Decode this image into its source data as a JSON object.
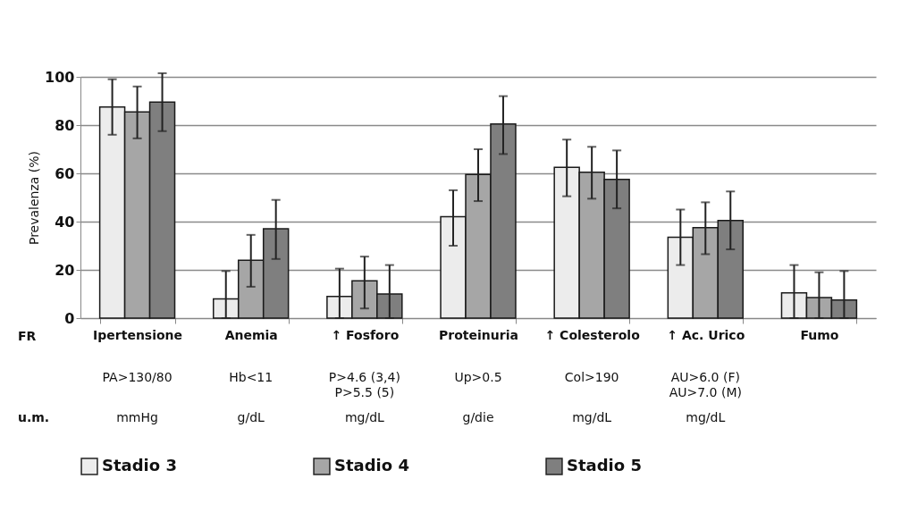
{
  "chart_data": {
    "type": "bar",
    "ylabel": "Prevalenza (%)",
    "categories": [
      "Ipertensione",
      "Anemia",
      "↑ Fosforo",
      "Proteinuria",
      "↑ Colesterolo",
      "↑ Ac. Urico",
      "Fumo"
    ],
    "series": [
      {
        "name": "Stadio 3",
        "color": "#ececec",
        "values": [
          87.5,
          8,
          9,
          42,
          62.5,
          33.5,
          10.5
        ],
        "errors": [
          [
            76,
            99
          ],
          [
            0,
            19.5
          ],
          [
            0,
            20.5
          ],
          [
            30,
            53
          ],
          [
            50.5,
            74
          ],
          [
            22,
            45
          ],
          [
            0,
            22
          ]
        ]
      },
      {
        "name": "Stadio 4",
        "color": "#a6a6a6",
        "values": [
          85.5,
          24,
          15.5,
          59.5,
          60.5,
          37.5,
          8.5
        ],
        "errors": [
          [
            74.5,
            96
          ],
          [
            13,
            34.5
          ],
          [
            4,
            25.5
          ],
          [
            48.5,
            70
          ],
          [
            49.5,
            71
          ],
          [
            26.5,
            48
          ],
          [
            0,
            19
          ]
        ]
      },
      {
        "name": "Stadio 5",
        "color": "#7f7f7f",
        "values": [
          89.5,
          37,
          10,
          80.5,
          57.5,
          40.5,
          7.5
        ],
        "errors": [
          [
            77.5,
            101.5
          ],
          [
            24.5,
            49
          ],
          [
            0,
            22
          ],
          [
            68,
            92
          ],
          [
            45.5,
            69.5
          ],
          [
            28.5,
            52.5
          ],
          [
            0,
            19.5
          ]
        ]
      }
    ],
    "ylim": [
      0,
      100
    ],
    "yticks": [
      0,
      20,
      40,
      60,
      80,
      100
    ],
    "grid": "y",
    "legend": "bottom",
    "annotations": [
      "FR",
      "u.m.",
      "PA>130/80",
      "mmHg",
      "Hb<11",
      "g/dL",
      "P>4.6 (3,4)\nP>5.5 (5)",
      "mg/dL",
      "Up>0.5",
      "g/die",
      "Col>190",
      "mg/dL",
      "AU>6.0 (F)\nAU>7.0 (M)",
      "mg/dL"
    ]
  }
}
